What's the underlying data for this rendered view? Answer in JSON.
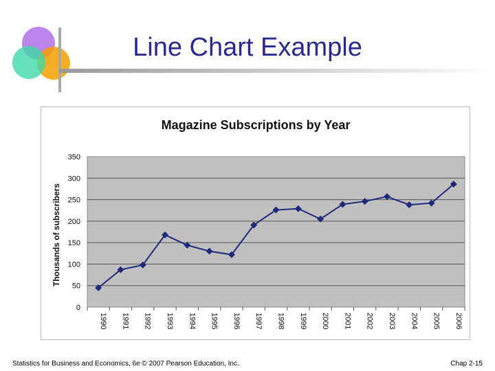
{
  "slide": {
    "title": "Line Chart Example",
    "footer_left": "Statistics for Business and Economics, 6e © 2007 Pearson Education, Inc.",
    "footer_right": "Chap 2-15"
  },
  "colors": {
    "title": "#2a2a8e",
    "plot_area": "#c0c0c0",
    "series": "#1f2a7a",
    "grid": "#555555"
  },
  "chart_data": {
    "type": "line",
    "title": "Magazine Subscriptions by Year",
    "xlabel": "",
    "ylabel": "Thousands of subscribers",
    "categories": [
      "1990",
      "1991",
      "1992",
      "1993",
      "1994",
      "1995",
      "1996",
      "1997",
      "1998",
      "1999",
      "2000",
      "2001",
      "2002",
      "2003",
      "2004",
      "2005",
      "2006"
    ],
    "series": [
      {
        "values": [
          45,
          87,
          98,
          168,
          144,
          130,
          122,
          191,
          226,
          229,
          205,
          239,
          246,
          257,
          238,
          242,
          286
        ]
      }
    ],
    "ylim": [
      0,
      350
    ],
    "yticks": [
      "0",
      "50",
      "100",
      "150",
      "200",
      "250",
      "300",
      "350"
    ],
    "grid": true,
    "marker": "diamond"
  }
}
